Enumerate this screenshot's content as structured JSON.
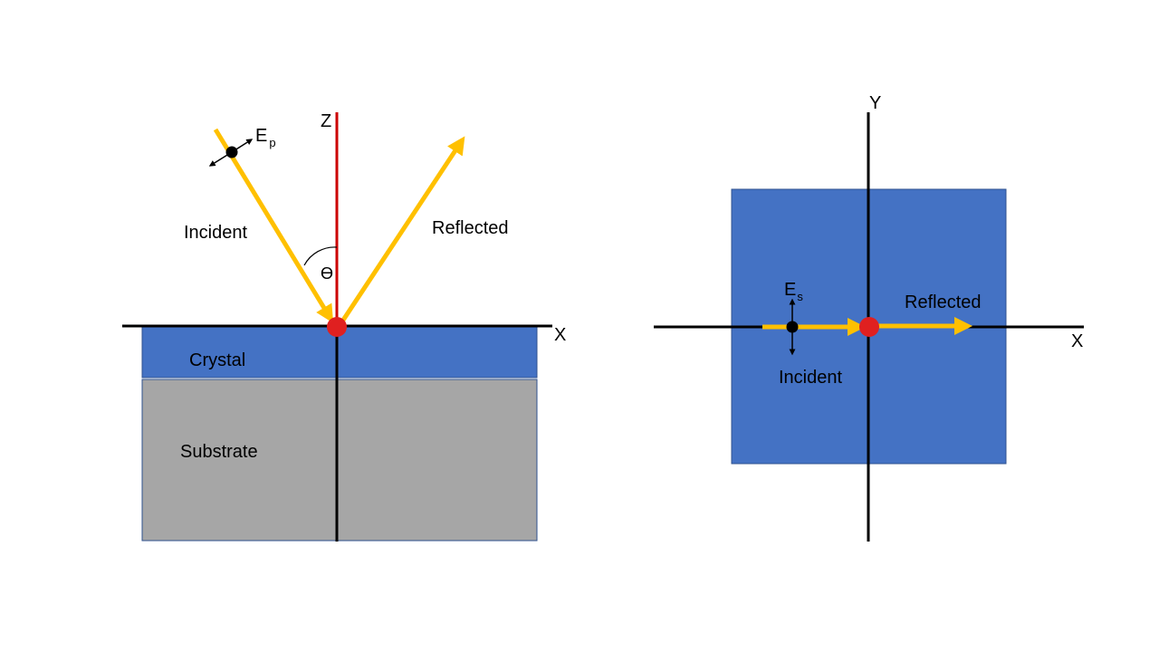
{
  "colors": {
    "crystal": "#4472c4",
    "substrate": "#a6a6a6",
    "beam": "#ffc000",
    "normal": "#cc0000",
    "spot": "#e02020",
    "axis": "#000000"
  },
  "side_view": {
    "axis_x_label": "X",
    "axis_z_label": "Z",
    "incident_label": "Incident",
    "reflected_label": "Reflected",
    "angle_label": "ϴ",
    "field_label": "E",
    "field_subscript": "p",
    "crystal_label": "Crystal",
    "substrate_label": "Substrate"
  },
  "top_view": {
    "axis_x_label": "X",
    "axis_y_label": "Y",
    "incident_label": "Incident",
    "reflected_label": "Reflected",
    "field_label": "E",
    "field_subscript": "s"
  }
}
